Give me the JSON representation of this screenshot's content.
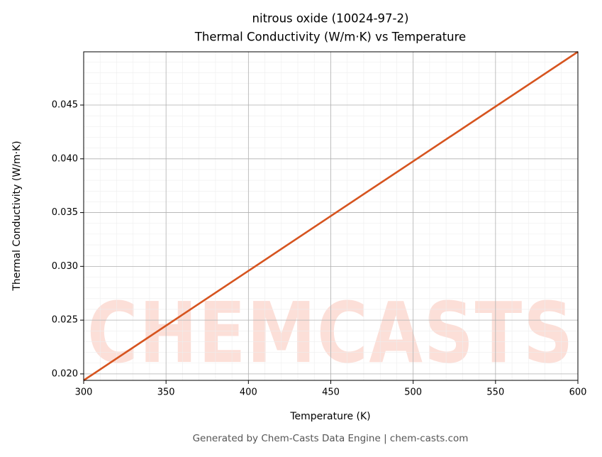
{
  "chart_data": {
    "type": "line",
    "title": "nitrous oxide (10024-97-2)",
    "subtitle": "Thermal Conductivity (W/m·K) vs Temperature",
    "x_label": "Temperature (K)",
    "y_label": "Thermal Conductivity (W/m·K)",
    "watermark": "CHEMCASTS",
    "footer": "Generated by Chem-Casts Data Engine | chem-casts.com",
    "x": [
      300,
      350,
      400,
      450,
      500,
      550,
      600
    ],
    "series": [
      {
        "name": "Thermal Conductivity",
        "color": "#d6541f",
        "values": [
          0.0194,
          0.02449,
          0.02958,
          0.03468,
          0.03977,
          0.04486,
          0.04995
        ]
      }
    ],
    "xlim": [
      300,
      600
    ],
    "xticks": [
      300,
      350,
      400,
      450,
      500,
      550,
      600
    ],
    "ylim": [
      0.0194,
      0.04995
    ],
    "yticks": [
      {
        "value": 0.02,
        "label": "0.020"
      },
      {
        "value": 0.025,
        "label": "0.025"
      },
      {
        "value": 0.03,
        "label": "0.030"
      },
      {
        "value": 0.035,
        "label": "0.035"
      },
      {
        "value": 0.04,
        "label": "0.040"
      },
      {
        "value": 0.045,
        "label": "0.045"
      }
    ],
    "grid": true
  }
}
